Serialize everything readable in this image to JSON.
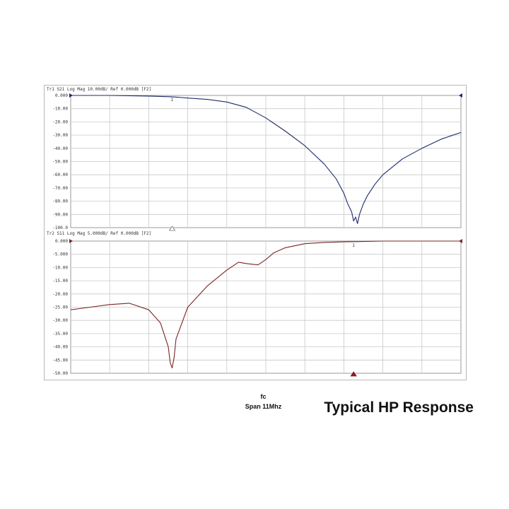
{
  "caption": "Typical HP Response",
  "sweep": {
    "center_label": "fc",
    "span_label": "Span 11Mhz"
  },
  "colors": {
    "trace1": "#1f2a6b",
    "trace2": "#7a2525",
    "grid": "#c8c8c8",
    "marker1": "#1f2a6b",
    "marker2": "#8b1a1a"
  },
  "chart_data": [
    {
      "type": "line",
      "header": "Tr1 S21 Log Mag 10.00dB/ Ref 0.000dB [F2]",
      "ytick_labels": [
        "0.000",
        "-10.00",
        "-20.00",
        "-30.00",
        "-40.00",
        "-50.00",
        "-60.00",
        "-70.00",
        "-80.00",
        "-90.00",
        "-100.0"
      ],
      "ylim": [
        -100,
        0
      ],
      "xlim": [
        0,
        10
      ],
      "grid": true,
      "markers": [
        {
          "label": "1",
          "x": 2.6
        }
      ],
      "series": [
        {
          "color": "#1f2a6b",
          "x": [
            0,
            1,
            2,
            2.6,
            3,
            3.5,
            4,
            4.5,
            5,
            5.5,
            6,
            6.5,
            6.8,
            7,
            7.1,
            7.2,
            7.25,
            7.3,
            7.35,
            7.4,
            7.5,
            7.6,
            7.8,
            8,
            8.5,
            9,
            9.5,
            10
          ],
          "y": [
            0,
            0,
            -0.5,
            -1,
            -2,
            -3,
            -5,
            -9,
            -17,
            -27,
            -38,
            -52,
            -63,
            -74,
            -82,
            -88,
            -95,
            -92,
            -97,
            -90,
            -82,
            -76,
            -67,
            -60,
            -48,
            -40,
            -33,
            -28
          ]
        }
      ]
    },
    {
      "type": "line",
      "header": "Tr2 S11 Log Mag 5.000dB/ Ref 0.000dB [F2]",
      "ytick_labels": [
        "0.000",
        "-5.000",
        "-10.00",
        "-15.00",
        "-20.00",
        "-25.00",
        "-30.00",
        "-35.00",
        "-40.00",
        "-45.00",
        "-50.00"
      ],
      "ylim": [
        -50,
        0
      ],
      "xlim": [
        0,
        10
      ],
      "grid": true,
      "markers": [
        {
          "label": "1",
          "x": 7.25
        }
      ],
      "series": [
        {
          "color": "#7a2525",
          "x": [
            0,
            0.5,
            1,
            1.5,
            2,
            2.3,
            2.5,
            2.55,
            2.6,
            2.65,
            2.7,
            3,
            3.5,
            4,
            4.3,
            4.5,
            4.8,
            5,
            5.2,
            5.5,
            6,
            6.5,
            7,
            8,
            9,
            10
          ],
          "y": [
            -26,
            -25,
            -24,
            -23.5,
            -26,
            -31,
            -40,
            -46,
            -48,
            -44,
            -37,
            -25,
            -17,
            -11,
            -8,
            -8.5,
            -9,
            -7,
            -4.5,
            -2.5,
            -1,
            -0.5,
            -0.3,
            0,
            0,
            0
          ]
        }
      ]
    }
  ]
}
